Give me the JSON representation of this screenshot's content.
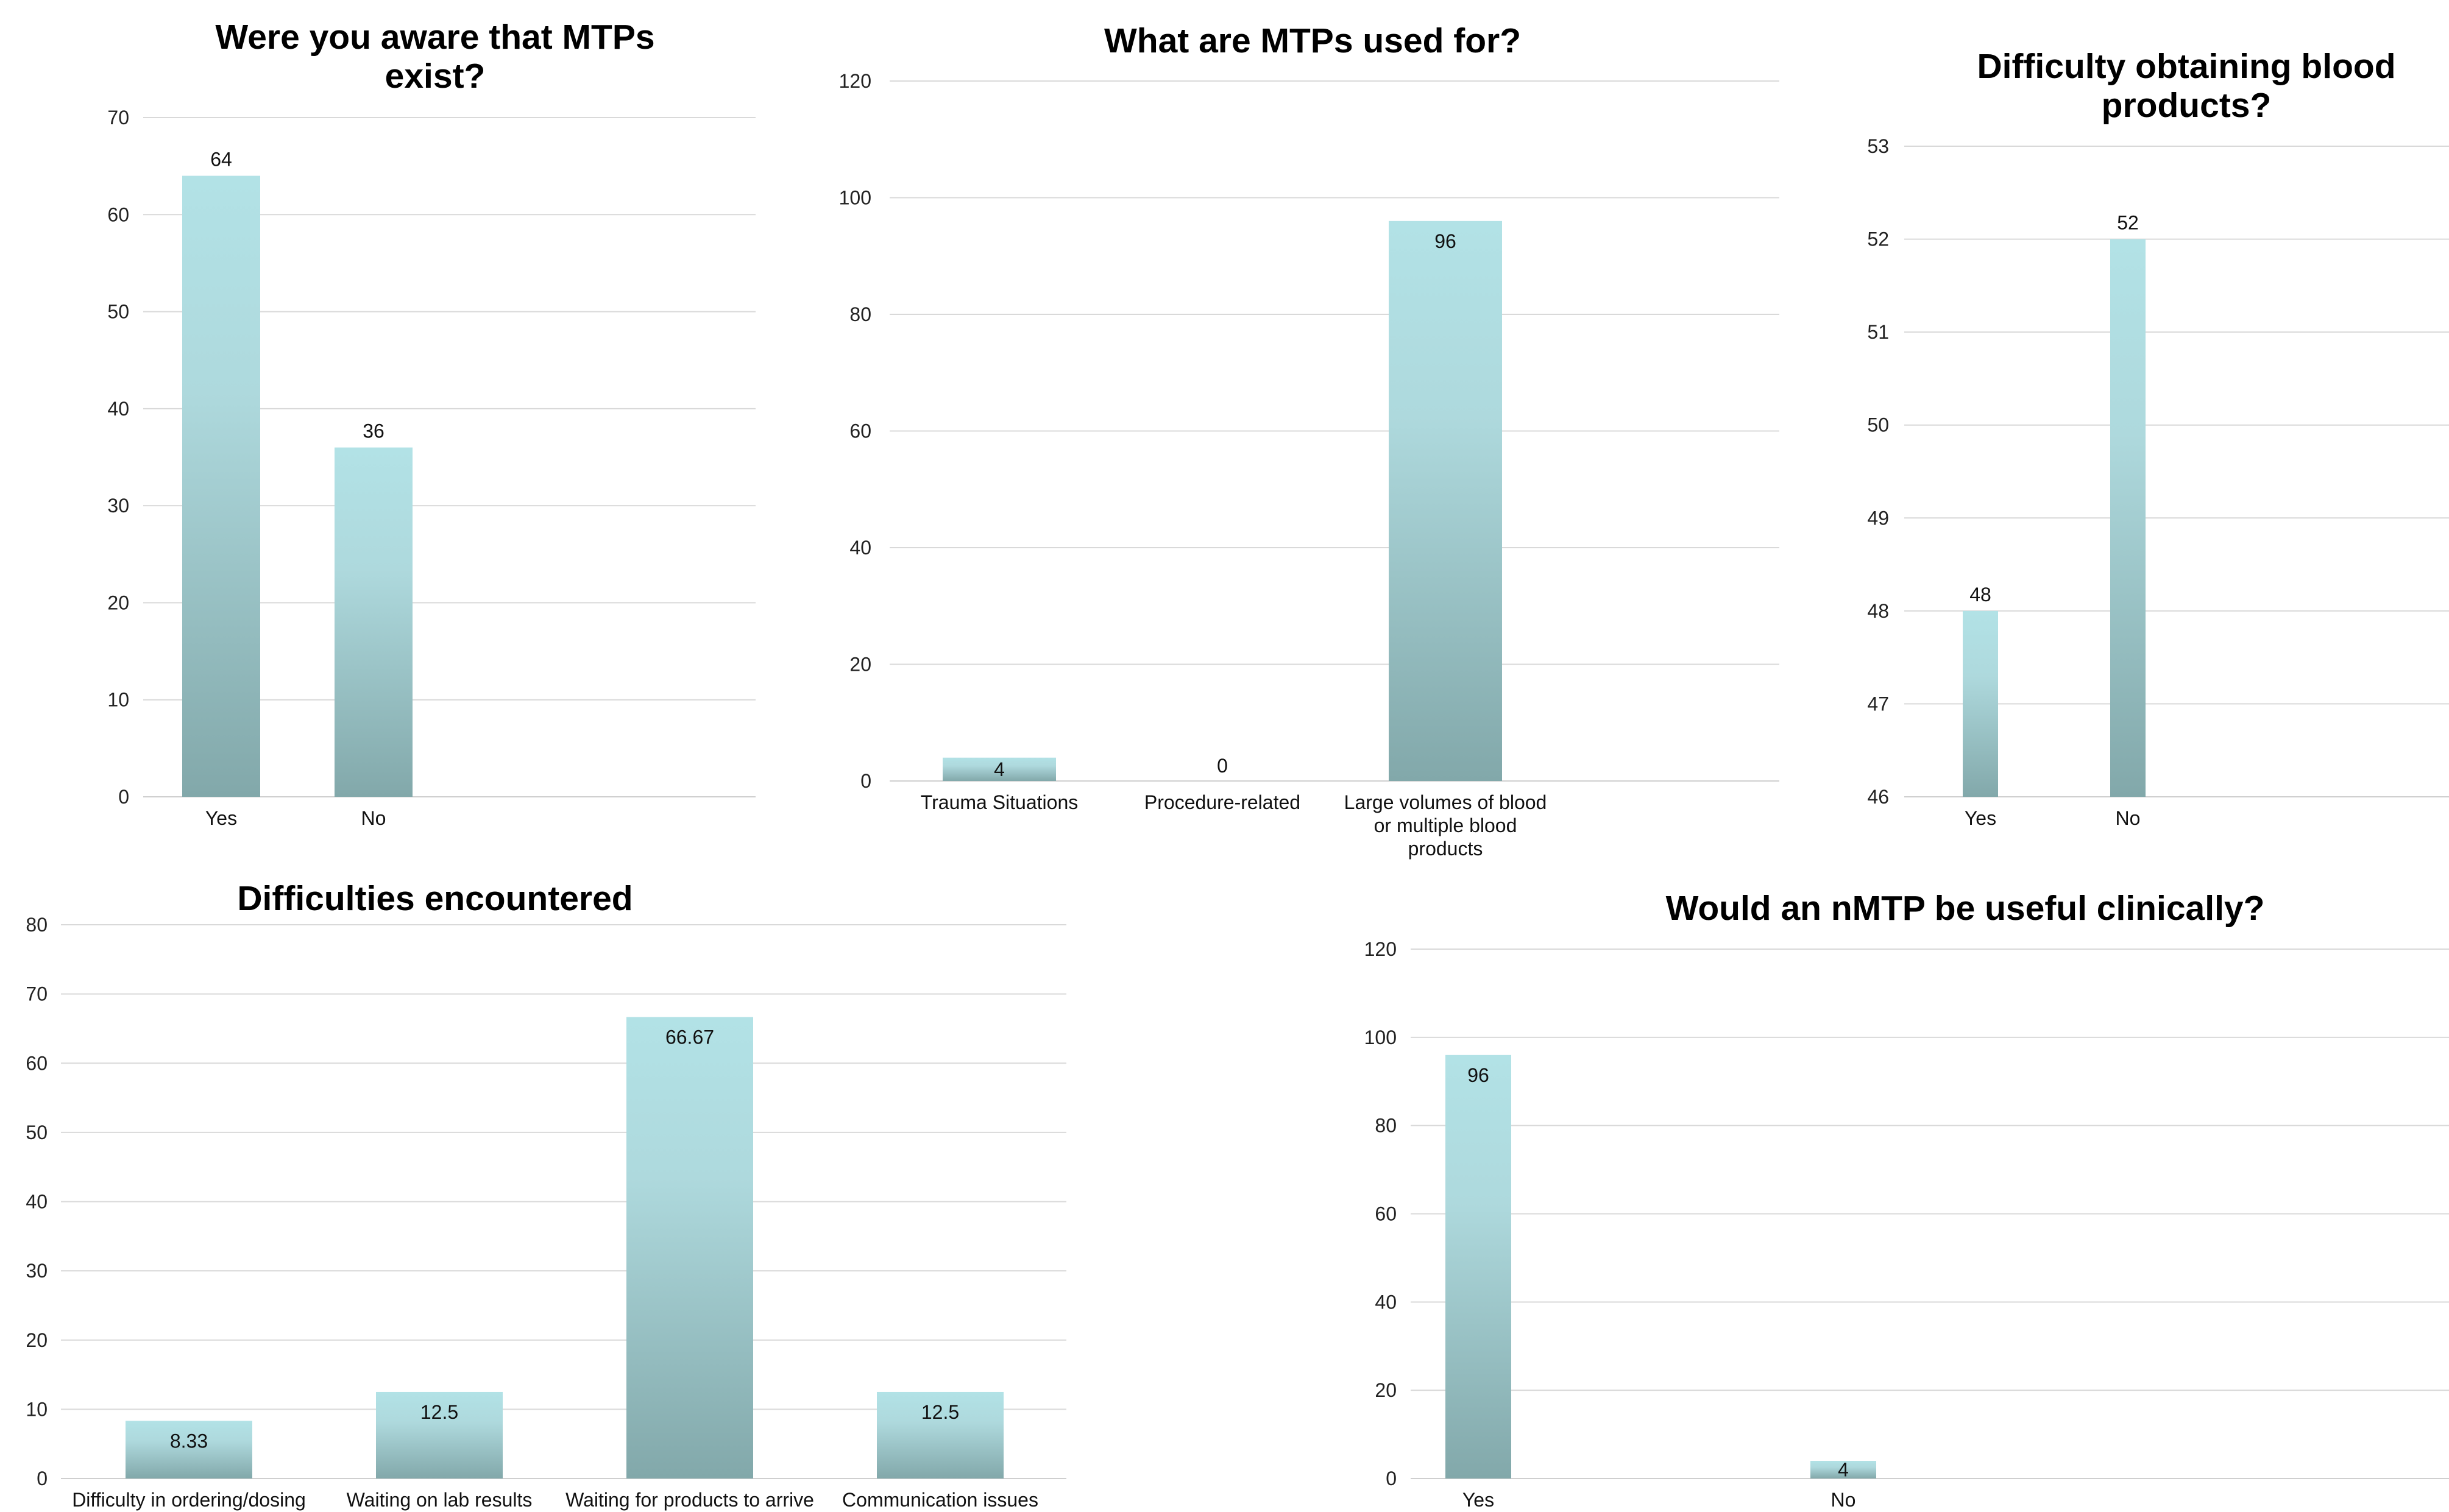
{
  "chart_data": [
    {
      "type": "bar",
      "title": "Were you aware that MTPs exist?",
      "title_lines": [
        "Were you aware that MTPs",
        "exist?"
      ],
      "categories": [
        "Yes",
        "No"
      ],
      "category_lines": [
        [
          "Yes"
        ],
        [
          "No"
        ]
      ],
      "values": [
        64,
        36
      ],
      "data_labels": [
        "64",
        "36"
      ],
      "ylim": [
        0,
        70
      ],
      "ystep": 10,
      "label_position": "outside-end",
      "grid": true
    },
    {
      "type": "bar",
      "title": "What are MTPs used for?",
      "title_lines": [
        "What are MTPs used for?"
      ],
      "categories": [
        "Trauma Situations",
        "Procedure-related",
        "Large volumes of blood or multiple blood products"
      ],
      "category_lines": [
        [
          "Trauma Situations"
        ],
        [
          "Procedure-related"
        ],
        [
          "Large volumes of blood",
          "or multiple blood",
          "products"
        ]
      ],
      "values": [
        4,
        0,
        96
      ],
      "data_labels": [
        "4",
        "0",
        "96"
      ],
      "ylim": [
        0,
        120
      ],
      "ystep": 20,
      "label_position": "inside-end",
      "grid": true
    },
    {
      "type": "bar",
      "title": "Difficulty obtaining blood products?",
      "title_lines": [
        "Difficulty obtaining blood",
        "products?"
      ],
      "categories": [
        "Yes",
        "No"
      ],
      "category_lines": [
        [
          "Yes"
        ],
        [
          "No"
        ]
      ],
      "values": [
        48,
        52
      ],
      "data_labels": [
        "48",
        "52"
      ],
      "ylim": [
        46,
        53
      ],
      "ystep": 1,
      "label_position": "outside-end",
      "grid": true
    },
    {
      "type": "bar",
      "title": "Difficulties encountered",
      "title_lines": [
        "Difficulties encountered"
      ],
      "categories": [
        "Difficulty in ordering/dosing",
        "Waiting on lab results",
        "Waiting for products to arrive",
        "Communication issues"
      ],
      "category_lines": [
        [
          "Difficulty in ordering/dosing"
        ],
        [
          "Waiting on lab results"
        ],
        [
          "Waiting for products to arrive"
        ],
        [
          "Communication issues"
        ]
      ],
      "values": [
        8.33,
        12.5,
        66.67,
        12.5
      ],
      "data_labels": [
        "8.33",
        "12.5",
        "66.67",
        "12.5"
      ],
      "ylim": [
        0,
        80
      ],
      "ystep": 10,
      "label_position": "inside-end",
      "grid": true
    },
    {
      "type": "bar",
      "title": "Would an nMTP be useful clinically?",
      "title_lines": [
        "Would an nMTP be useful clinically?"
      ],
      "categories": [
        "Yes",
        "No"
      ],
      "category_lines": [
        [
          "Yes"
        ],
        [
          "No"
        ]
      ],
      "values": [
        96,
        4
      ],
      "data_labels": [
        "96",
        "4"
      ],
      "ylim": [
        0,
        120
      ],
      "ystep": 20,
      "label_position": "inside-end",
      "grid": true
    }
  ],
  "colors": {
    "bar_top": "#b2e2e6",
    "bar_bottom": "#82a8aa",
    "grid": "#d9d9d9",
    "text": "#111111"
  }
}
